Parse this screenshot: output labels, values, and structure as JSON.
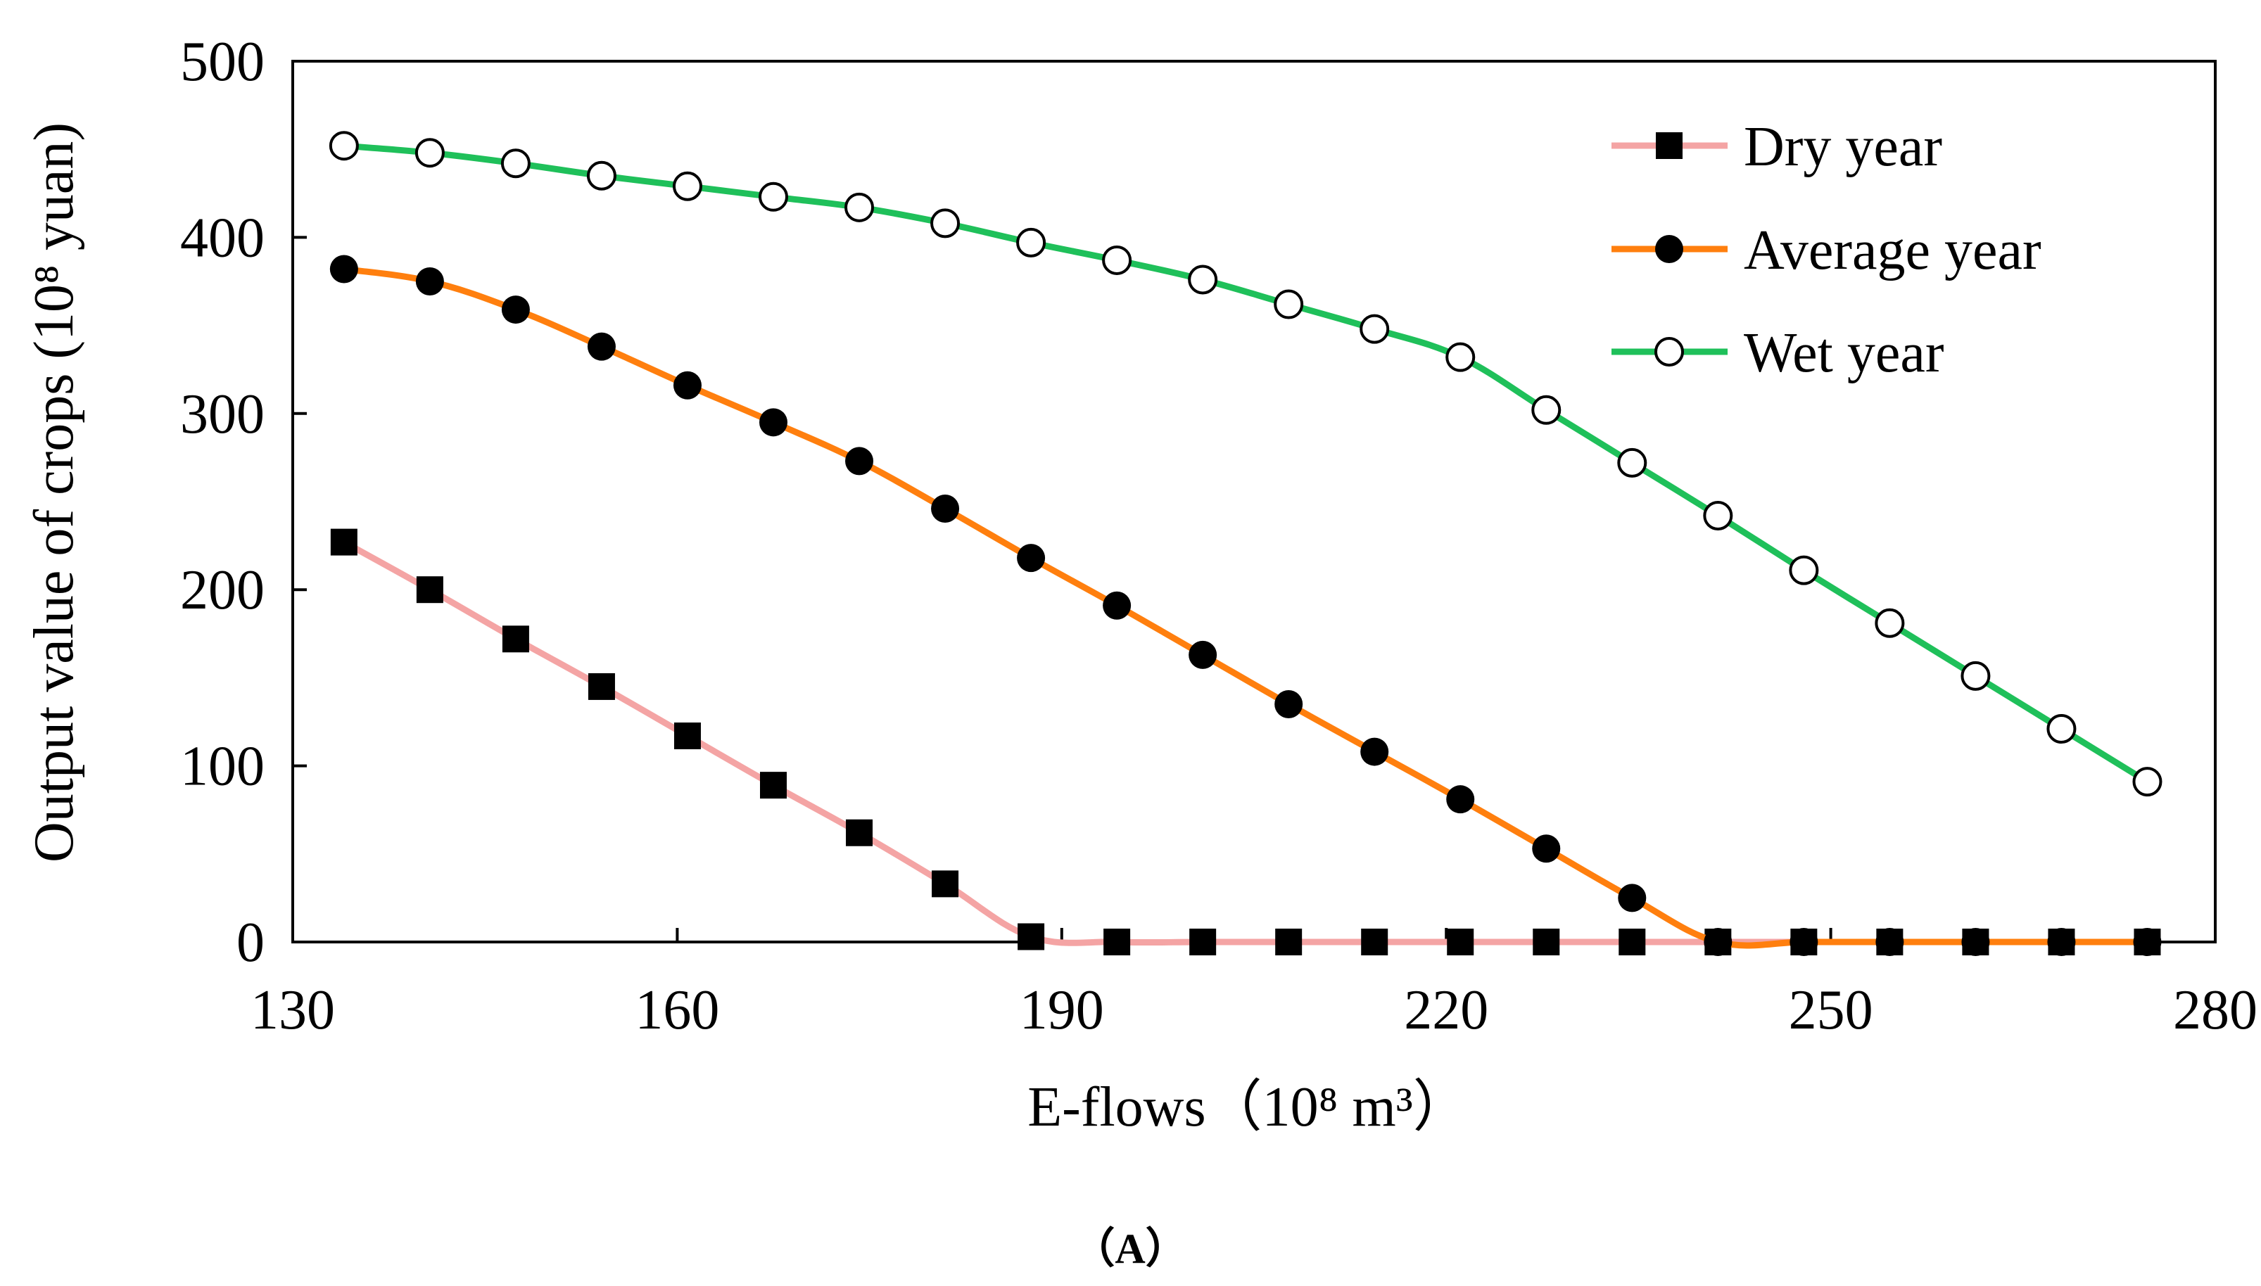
{
  "chart_data": {
    "type": "line",
    "title": "",
    "xlabel": "E-flows（10⁸ m³）",
    "ylabel": "Output value of crops (10⁸ yuan)",
    "xlim": [
      130,
      280
    ],
    "ylim": [
      0,
      500
    ],
    "x_ticks": [
      130,
      160,
      190,
      220,
      250,
      280
    ],
    "y_ticks": [
      0,
      100,
      200,
      300,
      400,
      500
    ],
    "grid": false,
    "legend_position": "top-right",
    "x": [
      134,
      140.7,
      147.4,
      154.1,
      160.8,
      167.5,
      174.2,
      180.9,
      187.6,
      194.3,
      201,
      207.7,
      214.4,
      221.1,
      227.8,
      234.5,
      241.2,
      247.9,
      254.6,
      261.3,
      268,
      274.7
    ],
    "series": [
      {
        "name": "Dry year",
        "color": "#f4a4a4",
        "marker": "filled-square",
        "values": [
          227,
          200,
          172,
          145,
          117,
          89,
          62,
          33,
          3,
          0,
          0,
          0,
          0,
          0,
          0,
          0,
          0,
          0,
          0,
          0,
          0,
          0
        ]
      },
      {
        "name": "Average year",
        "color": "#ff7f0e",
        "marker": "filled-circle",
        "values": [
          382,
          375,
          359,
          338,
          316,
          295,
          273,
          246,
          218,
          191,
          163,
          135,
          108,
          81,
          53,
          25,
          0,
          0,
          0,
          0,
          0,
          0
        ]
      },
      {
        "name": "Wet year",
        "color": "#1fc05a",
        "marker": "open-circle",
        "values": [
          452,
          448,
          442,
          435,
          429,
          423,
          417,
          408,
          397,
          387,
          376,
          362,
          348,
          332,
          302,
          272,
          242,
          211,
          181,
          151,
          121,
          91
        ]
      }
    ]
  },
  "caption": "（A）"
}
